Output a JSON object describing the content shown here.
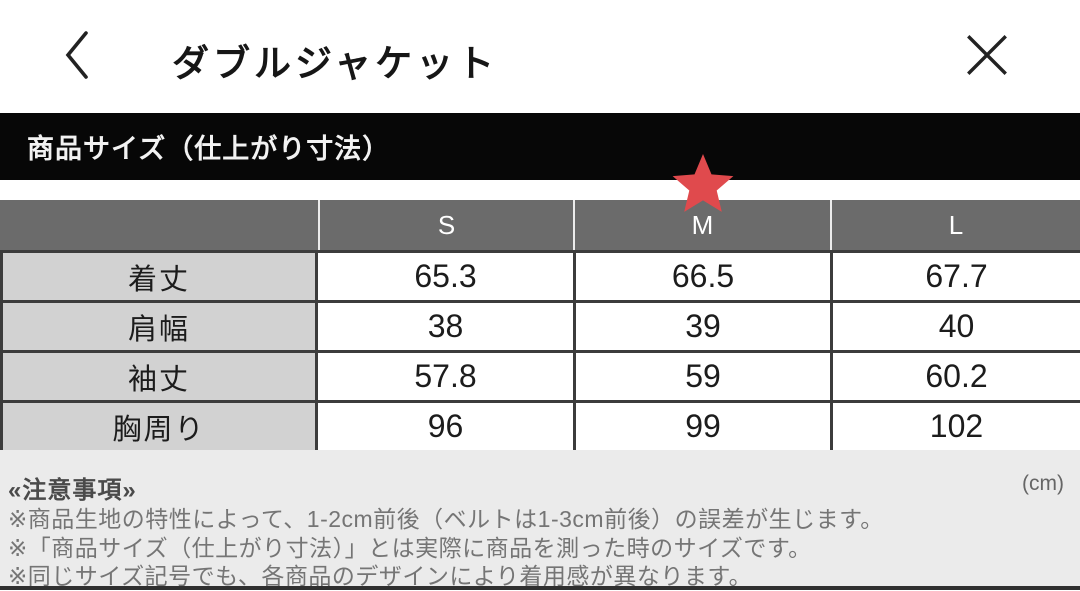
{
  "header": {
    "title": "ダブルジャケット"
  },
  "section_bar": {
    "label": "商品サイズ（仕上がり寸法）"
  },
  "size_table": {
    "columns": [
      "S",
      "M",
      "L"
    ],
    "highlighted_column": "M",
    "rows": [
      {
        "label": "着丈",
        "values": [
          "65.3",
          "66.5",
          "67.7"
        ]
      },
      {
        "label": "肩幅",
        "values": [
          "38",
          "39",
          "40"
        ]
      },
      {
        "label": "袖丈",
        "values": [
          "57.8",
          "59",
          "60.2"
        ]
      },
      {
        "label": "胸周り",
        "values": [
          "96",
          "99",
          "102"
        ]
      }
    ],
    "unit": "(cm)"
  },
  "notes": {
    "heading": "«注意事項»",
    "items": [
      "※商品生地の特性によって、1-2cm前後（ベルトは1-3cm前後）の誤差が生じます。",
      "※「商品サイズ（仕上がり寸法）」とは実際に商品を測った時のサイズです。",
      "※同じサイズ記号でも、各商品のデザインにより着用感が異なります。"
    ]
  },
  "colors": {
    "accent_star": "#e04a4d",
    "section_bar_bg": "#070707",
    "table_header_bg": "#6b6b6b",
    "label_cell_bg": "#d2d2d2",
    "notes_bg": "#ebebeb"
  }
}
